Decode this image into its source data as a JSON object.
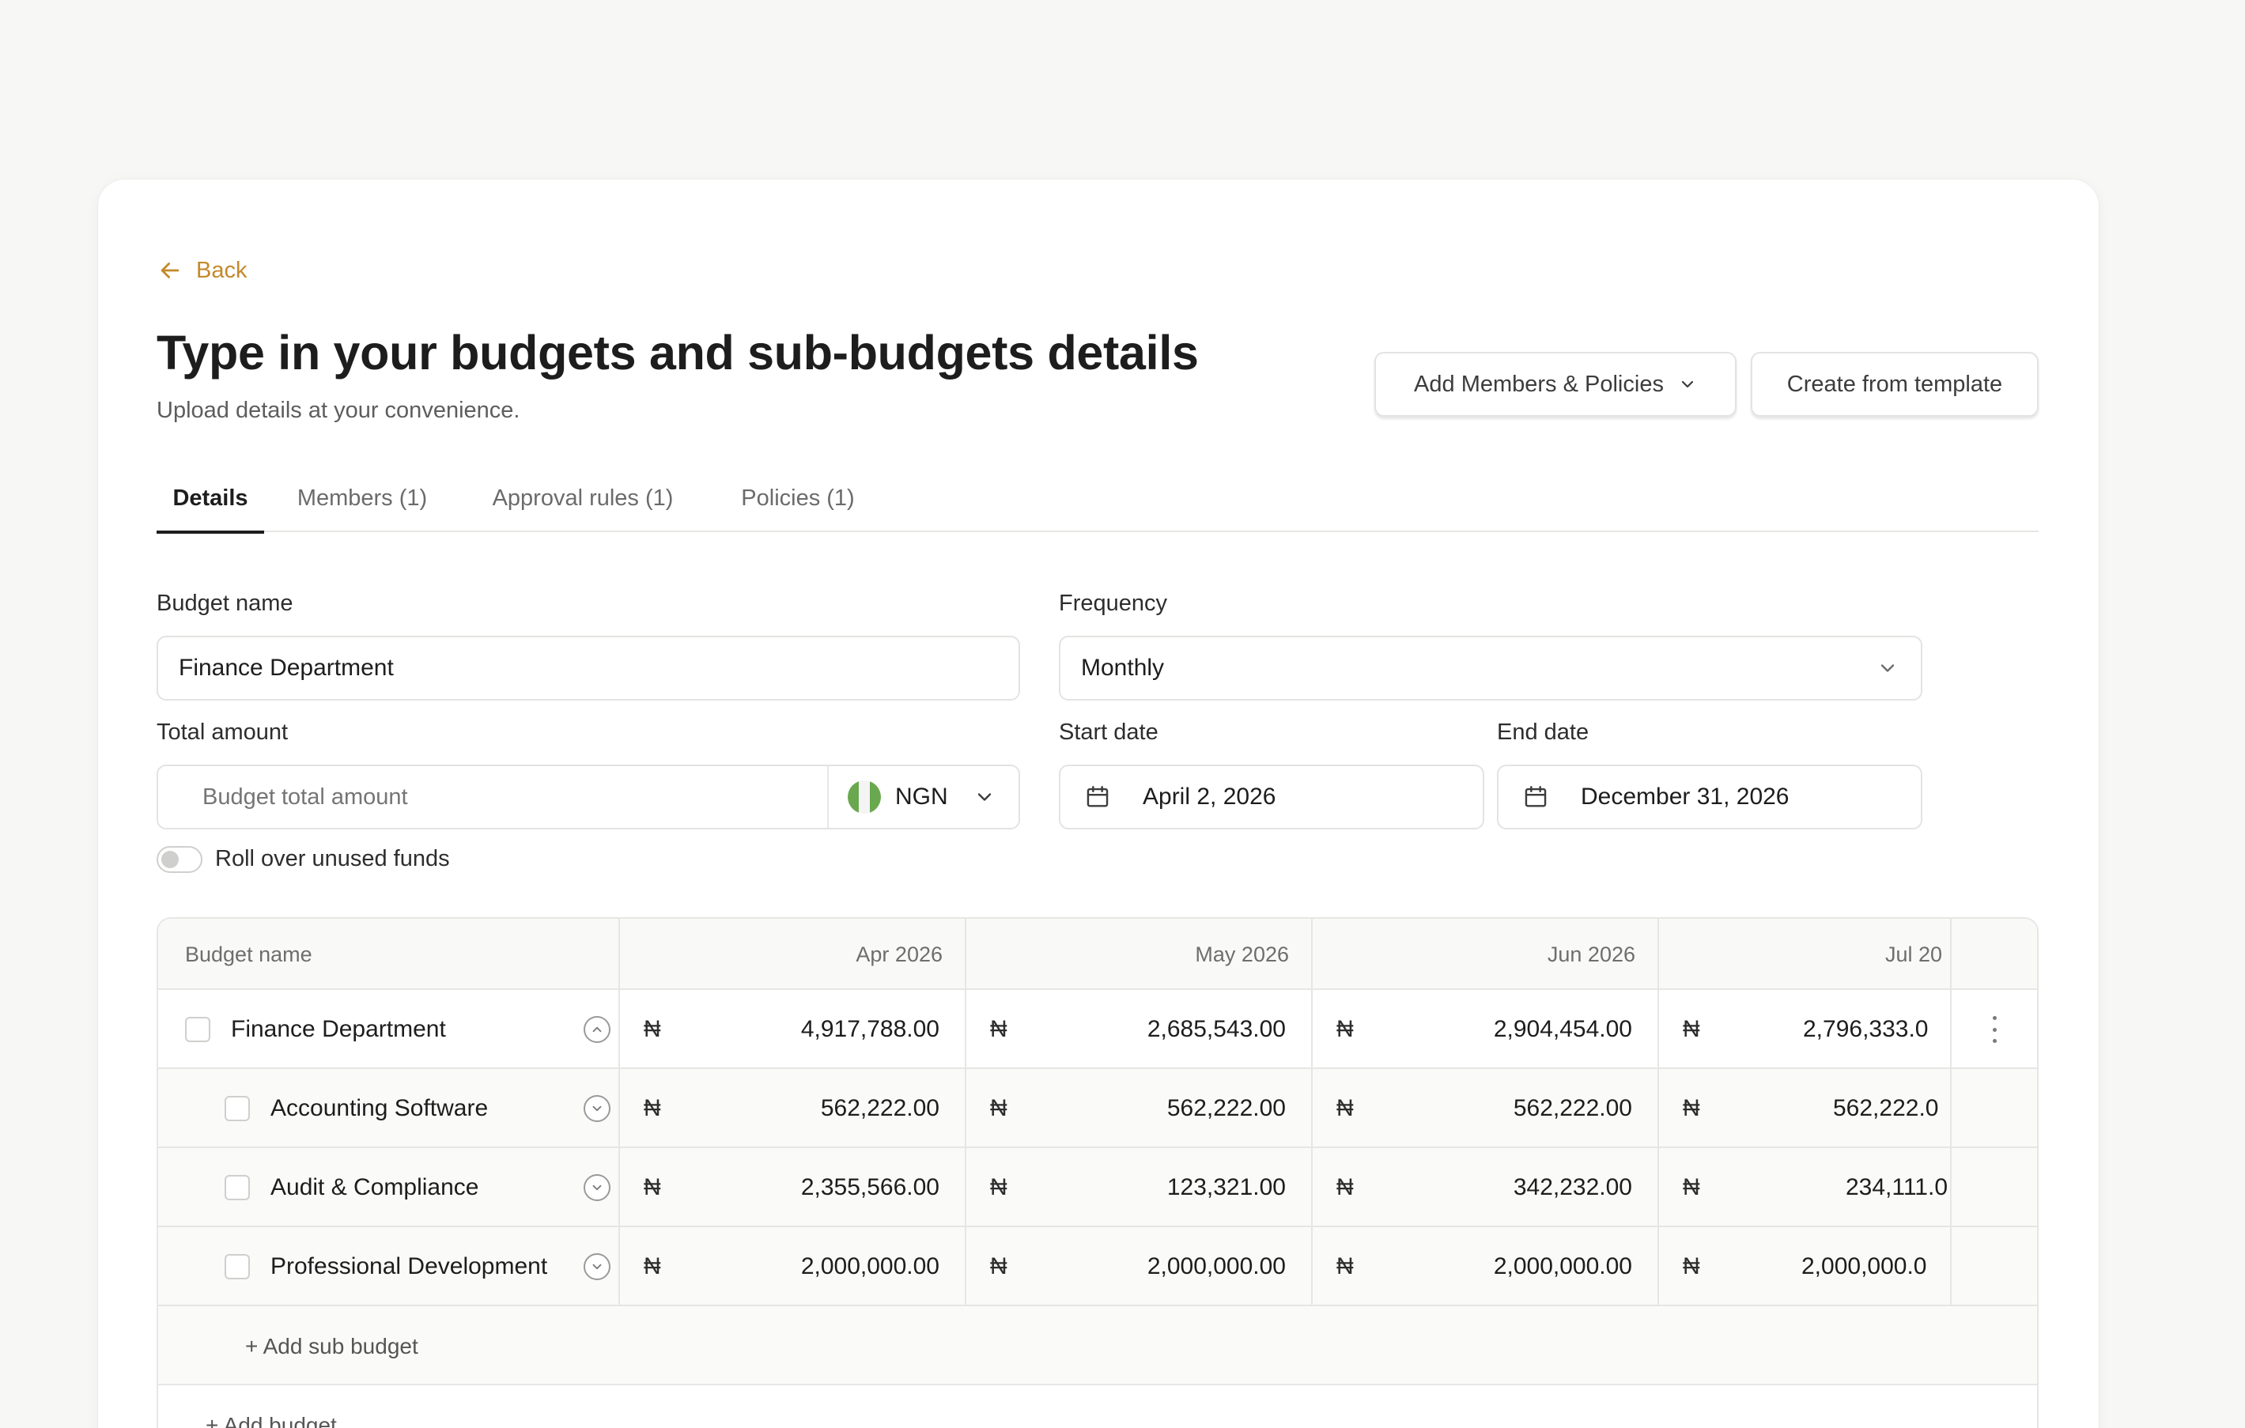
{
  "header": {
    "back_label": "Back",
    "title": "Type in your budgets and sub-budgets details",
    "subtitle": "Upload details at your convenience.",
    "add_members_label": "Add Members & Policies",
    "create_template_label": "Create from template",
    "accent_color": "#c48a2b"
  },
  "tabs": [
    {
      "label": "Details",
      "active": true
    },
    {
      "label": "Members (1)",
      "active": false
    },
    {
      "label": "Approval rules (1)",
      "active": false
    },
    {
      "label": "Policies (1)",
      "active": false
    }
  ],
  "form": {
    "budget_name_label": "Budget name",
    "budget_name_value": "Finance Department",
    "frequency_label": "Frequency",
    "frequency_value": "Monthly",
    "total_amount_label": "Total amount",
    "total_amount_placeholder": "Budget total amount",
    "currency": "NGN",
    "start_date_label": "Start date",
    "start_date_value": "April 2, 2026",
    "end_date_label": "End date",
    "end_date_value": "December 31, 2026",
    "rollover_label": "Roll over unused funds",
    "rollover_enabled": false
  },
  "table": {
    "name_header": "Budget name",
    "months": [
      "Apr 2026",
      "May 2026",
      "Jun 2026",
      "Jul 20"
    ],
    "currency_symbol": "₦",
    "rows": [
      {
        "name": "Finance Department",
        "parent": true,
        "values": [
          "4,917,788.00",
          "2,685,543.00",
          "2,904,454.00",
          "2,796,333.0"
        ]
      },
      {
        "name": "Accounting Software",
        "parent": false,
        "values": [
          "562,222.00",
          "562,222.00",
          "562,222.00",
          "562,222.0"
        ]
      },
      {
        "name": "Audit & Compliance",
        "parent": false,
        "values": [
          "2,355,566.00",
          "123,321.00",
          "342,232.00",
          "234,111.0"
        ]
      },
      {
        "name": "Professional Development",
        "parent": false,
        "values": [
          "2,000,000.00",
          "2,000,000.00",
          "2,000,000.00",
          "2,000,000.0"
        ]
      }
    ],
    "add_sub_budget_label": "+ Add sub budget",
    "add_budget_label": "+ Add budget"
  }
}
